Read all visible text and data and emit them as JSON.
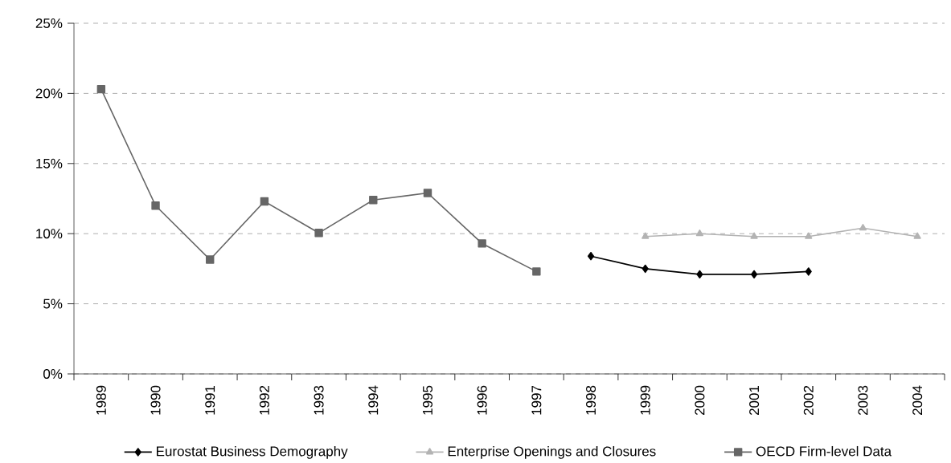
{
  "chart_data": {
    "type": "line",
    "categories": [
      "1989",
      "1990",
      "1991",
      "1992",
      "1993",
      "1994",
      "1995",
      "1996",
      "1997",
      "1998",
      "1999",
      "2000",
      "2001",
      "2002",
      "2003",
      "2004"
    ],
    "series": [
      {
        "name": "Eurostat Business Demography",
        "color": "#000000",
        "marker": "diamond",
        "values": [
          null,
          null,
          null,
          null,
          null,
          null,
          null,
          null,
          null,
          8.4,
          7.5,
          7.1,
          7.1,
          7.3,
          null,
          null
        ]
      },
      {
        "name": "Enterprise Openings and Closures",
        "color": "#b3b3b3",
        "marker": "triangle",
        "values": [
          null,
          null,
          null,
          null,
          null,
          null,
          null,
          null,
          null,
          null,
          9.8,
          10.0,
          9.8,
          9.8,
          10.4,
          9.8
        ]
      },
      {
        "name": "OECD Firm-level Data",
        "color": "#666666",
        "marker": "square",
        "values": [
          20.3,
          12.0,
          8.15,
          12.3,
          10.05,
          12.4,
          12.9,
          9.3,
          7.3,
          null,
          null,
          null,
          null,
          null,
          null,
          null
        ]
      }
    ],
    "ylim": [
      0,
      25
    ],
    "yticks": [
      {
        "value": 0,
        "label": "0%"
      },
      {
        "value": 5,
        "label": "5%"
      },
      {
        "value": 10,
        "label": "10%"
      },
      {
        "value": 15,
        "label": "15%"
      },
      {
        "value": 20,
        "label": "20%"
      },
      {
        "value": 25,
        "label": "25%"
      }
    ],
    "grid": "y",
    "legend": "bottom",
    "line_style": "solid"
  }
}
